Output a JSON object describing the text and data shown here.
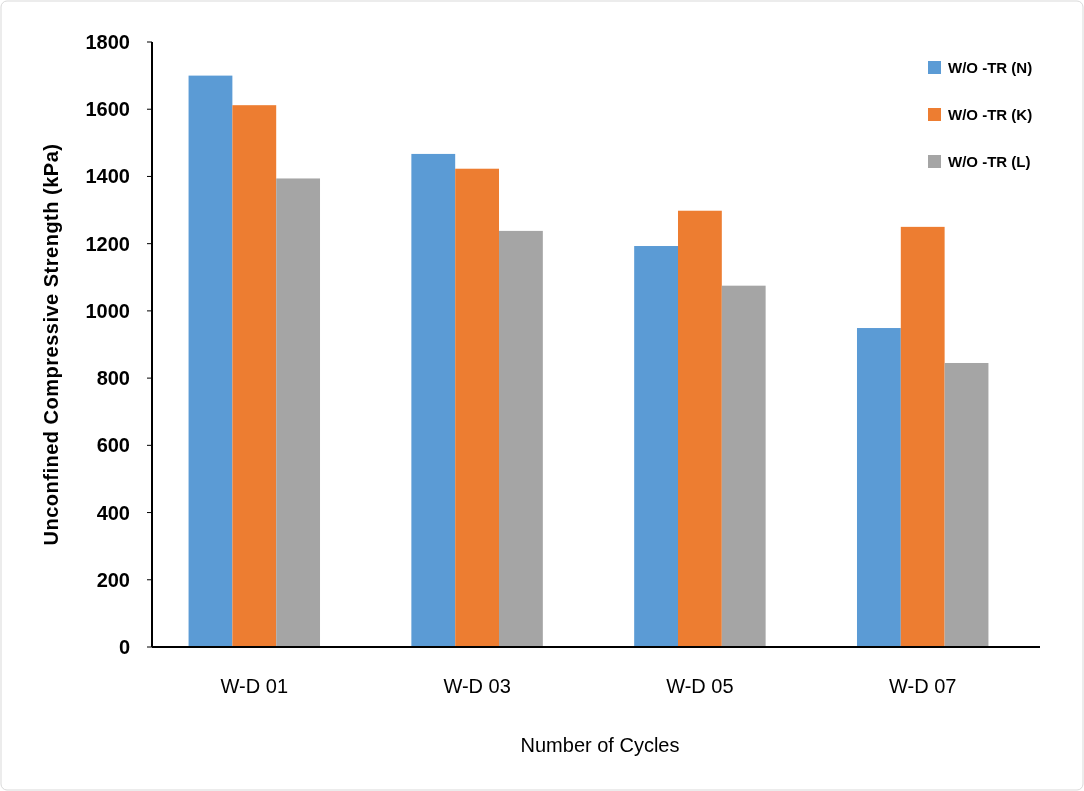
{
  "chart_data": {
    "type": "bar",
    "xlabel": "Number of Cycles",
    "ylabel": "Unconfined Compressive Strength (kPa)",
    "categories": [
      "W-D 01",
      "W-D 03",
      "W-D 05",
      "W-D 07"
    ],
    "series": [
      {
        "name": "W/O -TR (N)",
        "color": "#5b9bd5",
        "values": [
          1700,
          1467,
          1193,
          949
        ]
      },
      {
        "name": "W/O -TR (K)",
        "color": "#ed7d31",
        "values": [
          1612,
          1423,
          1298,
          1250
        ]
      },
      {
        "name": "W/O -TR (L)",
        "color": "#a5a5a5",
        "values": [
          1394,
          1238,
          1075,
          845
        ]
      }
    ],
    "ylim": [
      0,
      1800
    ],
    "yticks": [
      0,
      200,
      400,
      600,
      800,
      1000,
      1200,
      1400,
      1600,
      1800
    ],
    "grid": false,
    "legend": "top right"
  }
}
